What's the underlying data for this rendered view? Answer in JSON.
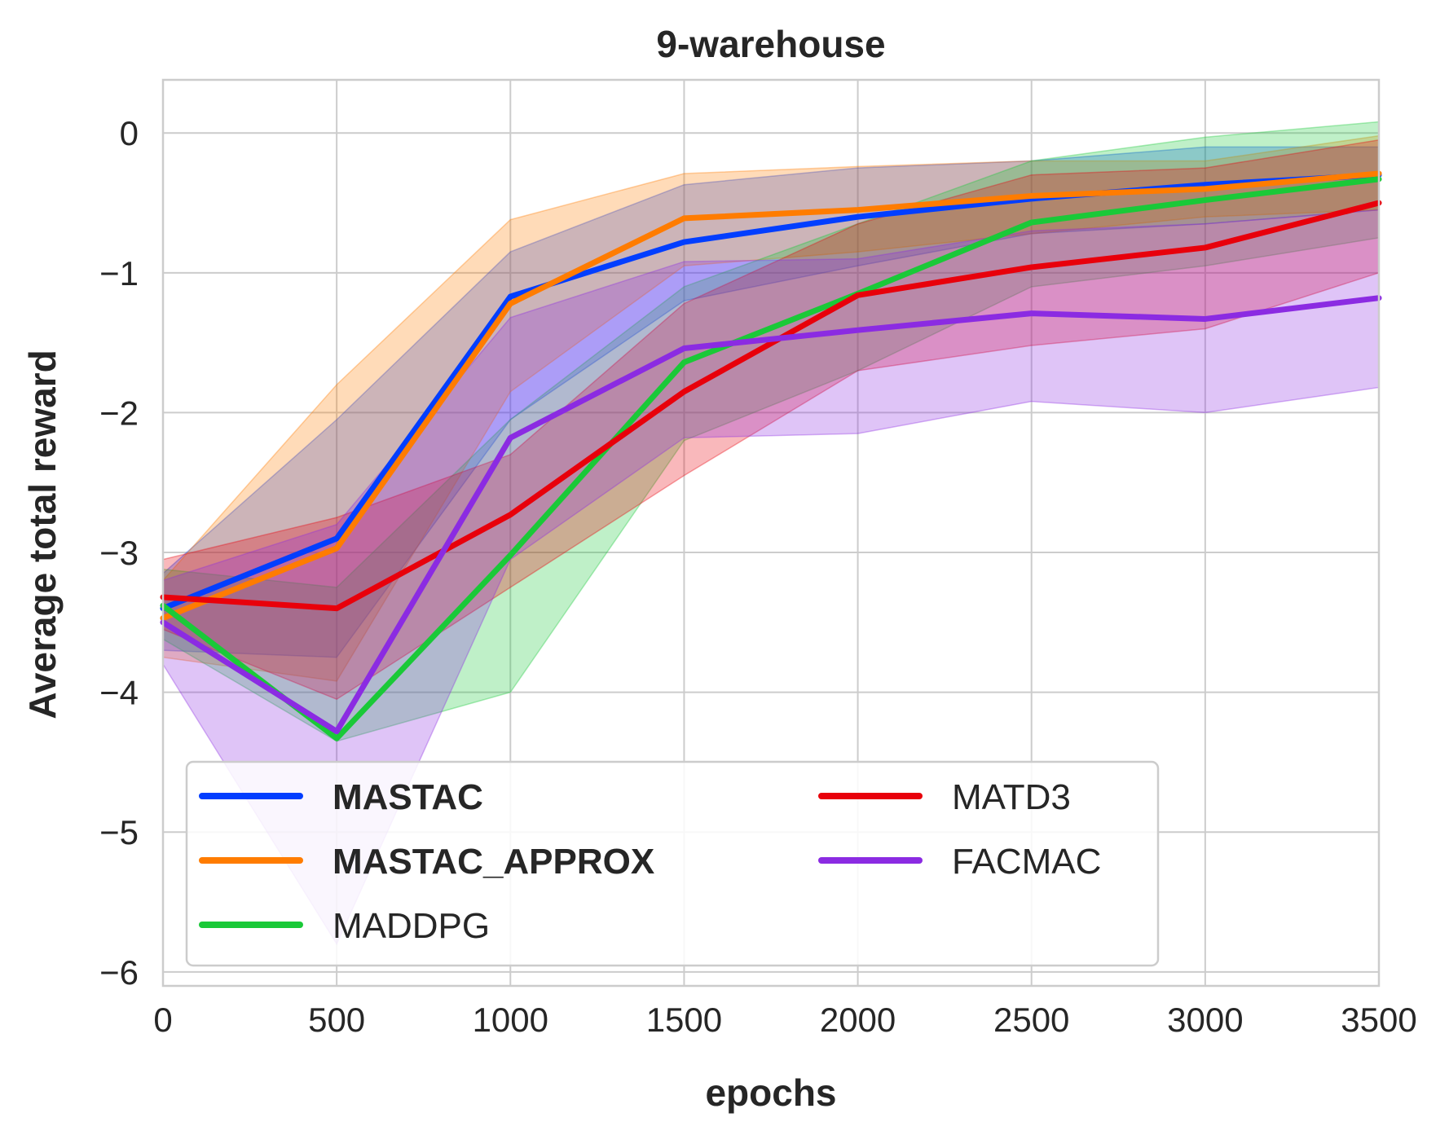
{
  "chart_data": {
    "type": "line",
    "title": "9-warehouse",
    "xlabel": "epochs",
    "ylabel": "Average total reward",
    "xlim": [
      0,
      3500
    ],
    "ylim": [
      -6.1,
      0.38
    ],
    "x_ticks": [
      0,
      500,
      1000,
      1500,
      2000,
      2500,
      3000,
      3500
    ],
    "x_tick_labels": [
      "0",
      "500",
      "1000",
      "1500",
      "2000",
      "2500",
      "3000",
      "3500"
    ],
    "y_ticks": [
      0,
      -1,
      -2,
      -3,
      -4,
      -5,
      -6
    ],
    "y_tick_labels": [
      "0",
      "−1",
      "−2",
      "−3",
      "−4",
      "−5",
      "−6"
    ],
    "grid": true,
    "legend_position": "lower-left",
    "x": [
      0,
      500,
      1000,
      1500,
      2000,
      2500,
      3000,
      3500
    ],
    "series": [
      {
        "name": "MASTAC",
        "bold": true,
        "color": "#023eff",
        "values": [
          -3.4,
          -2.9,
          -1.17,
          -0.78,
          -0.6,
          -0.47,
          -0.37,
          -0.3
        ],
        "upper": [
          -3.15,
          -2.05,
          -0.85,
          -0.37,
          -0.25,
          -0.2,
          -0.1,
          -0.1
        ],
        "lower": [
          -3.7,
          -3.75,
          -2.05,
          -1.2,
          -0.95,
          -0.72,
          -0.65,
          -0.55
        ]
      },
      {
        "name": "MASTAC_APPROX",
        "bold": true,
        "color": "#ff7c00",
        "values": [
          -3.47,
          -2.97,
          -1.22,
          -0.61,
          -0.55,
          -0.45,
          -0.4,
          -0.29
        ],
        "upper": [
          -3.2,
          -1.8,
          -0.62,
          -0.29,
          -0.24,
          -0.2,
          -0.2,
          -0.02
        ],
        "lower": [
          -3.75,
          -3.92,
          -1.85,
          -0.95,
          -0.85,
          -0.72,
          -0.6,
          -0.55
        ]
      },
      {
        "name": "MADDPG",
        "bold": false,
        "color": "#1ac938",
        "values": [
          -3.38,
          -4.33,
          -3.02,
          -1.64,
          -1.15,
          -0.64,
          -0.48,
          -0.33
        ],
        "upper": [
          -3.12,
          -3.25,
          -2.05,
          -1.1,
          -0.65,
          -0.2,
          -0.03,
          0.08
        ],
        "lower": [
          -3.62,
          -4.35,
          -4.0,
          -2.2,
          -1.7,
          -1.1,
          -0.95,
          -0.75
        ]
      },
      {
        "name": "MATD3",
        "bold": false,
        "color": "#e8000b",
        "values": [
          -3.32,
          -3.4,
          -2.73,
          -1.85,
          -1.16,
          -0.96,
          -0.82,
          -0.5
        ],
        "upper": [
          -3.05,
          -2.75,
          -2.3,
          -1.22,
          -0.65,
          -0.3,
          -0.25,
          -0.05
        ],
        "lower": [
          -3.55,
          -4.05,
          -3.25,
          -2.45,
          -1.7,
          -1.52,
          -1.4,
          -1.0
        ]
      },
      {
        "name": "FACMAC",
        "bold": false,
        "color": "#8b2be2",
        "values": [
          -3.5,
          -4.28,
          -2.18,
          -1.54,
          -1.41,
          -1.29,
          -1.33,
          -1.18
        ],
        "upper": [
          -3.2,
          -2.8,
          -1.32,
          -0.92,
          -0.9,
          -0.7,
          -0.65,
          -0.55
        ],
        "lower": [
          -3.8,
          -5.8,
          -3.05,
          -2.18,
          -2.15,
          -1.92,
          -2.0,
          -1.82
        ]
      }
    ]
  }
}
